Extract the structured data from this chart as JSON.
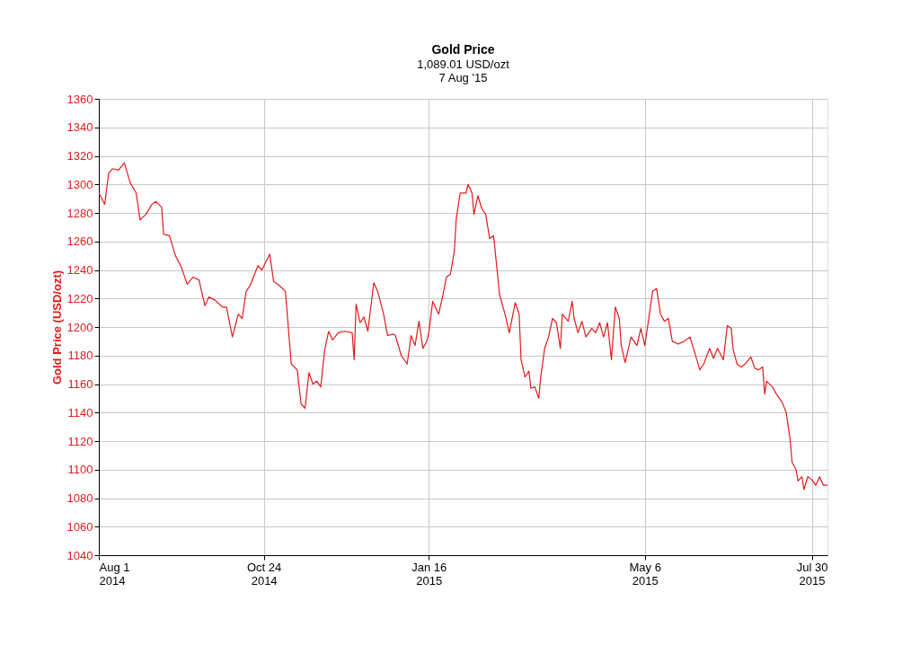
{
  "chart_data": {
    "type": "line",
    "title": "Gold Price",
    "subtitle": "1,089.01 USD/ozt\n7 Aug '15",
    "ylabel": "Gold Price (USD/ozt)",
    "x": [
      "2014-08-01",
      "2014-08-04",
      "2014-08-06",
      "2014-08-08",
      "2014-08-11",
      "2014-08-14",
      "2014-08-17",
      "2014-08-20",
      "2014-08-22",
      "2014-08-25",
      "2014-08-28",
      "2014-08-30",
      "2014-09-02",
      "2014-09-03",
      "2014-09-06",
      "2014-09-09",
      "2014-09-12",
      "2014-09-15",
      "2014-09-18",
      "2014-09-21",
      "2014-09-24",
      "2014-09-26",
      "2014-09-29",
      "2014-10-03",
      "2014-10-05",
      "2014-10-08",
      "2014-10-11",
      "2014-10-13",
      "2014-10-15",
      "2014-10-17",
      "2014-10-21",
      "2014-10-23",
      "2014-10-27",
      "2014-10-29",
      "2014-11-01",
      "2014-11-04",
      "2014-11-07",
      "2014-11-10",
      "2014-11-12",
      "2014-11-14",
      "2014-11-16",
      "2014-11-18",
      "2014-11-20",
      "2014-11-22",
      "2014-11-24",
      "2014-11-26",
      "2014-11-28",
      "2014-12-01",
      "2014-12-04",
      "2014-12-08",
      "2014-12-09",
      "2014-12-10",
      "2014-12-12",
      "2014-12-14",
      "2014-12-16",
      "2014-12-19",
      "2014-12-21",
      "2014-12-24",
      "2014-12-26",
      "2014-12-29",
      "2014-12-30",
      "2015-01-02",
      "2015-01-05",
      "2015-01-07",
      "2015-01-09",
      "2015-01-11",
      "2015-01-13",
      "2015-01-15",
      "2015-01-16",
      "2015-01-18",
      "2015-01-21",
      "2015-01-23",
      "2015-01-25",
      "2015-01-27",
      "2015-01-29",
      "2015-01-30",
      "2015-02-01",
      "2015-02-04",
      "2015-02-05",
      "2015-02-07",
      "2015-02-08",
      "2015-02-10",
      "2015-02-12",
      "2015-02-14",
      "2015-02-16",
      "2015-02-18",
      "2015-02-20",
      "2015-02-21",
      "2015-02-24",
      "2015-02-26",
      "2015-02-27",
      "2015-03-01",
      "2015-03-03",
      "2015-03-04",
      "2015-03-06",
      "2015-03-08",
      "2015-03-09",
      "2015-03-11",
      "2015-03-13",
      "2015-03-14",
      "2015-03-16",
      "2015-03-18",
      "2015-03-20",
      "2015-03-22",
      "2015-03-24",
      "2015-03-25",
      "2015-03-28",
      "2015-03-30",
      "2015-03-31",
      "2015-04-02",
      "2015-04-04",
      "2015-04-06",
      "2015-04-09",
      "2015-04-11",
      "2015-04-13",
      "2015-04-15",
      "2015-04-17",
      "2015-04-19",
      "2015-04-21",
      "2015-04-23",
      "2015-04-24",
      "2015-04-26",
      "2015-04-29",
      "2015-05-02",
      "2015-05-04",
      "2015-05-06",
      "2015-05-08",
      "2015-05-10",
      "2015-05-12",
      "2015-05-14",
      "2015-05-16",
      "2015-05-18",
      "2015-05-20",
      "2015-05-23",
      "2015-05-26",
      "2015-05-29",
      "2015-05-31",
      "2015-06-03",
      "2015-06-05",
      "2015-06-08",
      "2015-06-10",
      "2015-06-12",
      "2015-06-15",
      "2015-06-17",
      "2015-06-19",
      "2015-06-20",
      "2015-06-22",
      "2015-06-24",
      "2015-06-26",
      "2015-06-29",
      "2015-07-01",
      "2015-07-03",
      "2015-07-05",
      "2015-07-06",
      "2015-07-07",
      "2015-07-10",
      "2015-07-12",
      "2015-07-15",
      "2015-07-17",
      "2015-07-19",
      "2015-07-20",
      "2015-07-22",
      "2015-07-23",
      "2015-07-25",
      "2015-07-26",
      "2015-07-28",
      "2015-07-30",
      "2015-08-01",
      "2015-08-03",
      "2015-08-05",
      "2015-08-07"
    ],
    "series": [
      {
        "color": "#e31a1c",
        "values": [
          1294,
          1286,
          1308,
          1311,
          1310,
          1315,
          1301,
          1294,
          1275,
          1279,
          1286,
          1288,
          1284,
          1265,
          1264,
          1250,
          1242,
          1230,
          1235,
          1233,
          1215,
          1221,
          1219,
          1214,
          1214,
          1193,
          1209,
          1206,
          1225,
          1229,
          1243,
          1240,
          1251,
          1232,
          1229,
          1225,
          1174,
          1170,
          1146,
          1143,
          1168,
          1160,
          1162,
          1158,
          1184,
          1197,
          1191,
          1196,
          1197,
          1196,
          1177,
          1216,
          1203,
          1207,
          1197,
          1231,
          1225,
          1209,
          1194,
          1195,
          1194,
          1180,
          1174,
          1194,
          1187,
          1204,
          1185,
          1190,
          1196,
          1218,
          1209,
          1221,
          1235,
          1237,
          1253,
          1276,
          1294,
          1294,
          1300,
          1294,
          1279,
          1292,
          1283,
          1279,
          1262,
          1264,
          1237,
          1223,
          1208,
          1196,
          1203,
          1217,
          1209,
          1177,
          1165,
          1169,
          1157,
          1158,
          1150,
          1165,
          1185,
          1193,
          1206,
          1203,
          1185,
          1209,
          1204,
          1218,
          1206,
          1196,
          1204,
          1193,
          1199,
          1196,
          1203,
          1193,
          1203,
          1177,
          1214,
          1206,
          1187,
          1175,
          1193,
          1187,
          1199,
          1187,
          1206,
          1225,
          1227,
          1209,
          1204,
          1206,
          1190,
          1188,
          1190,
          1193,
          1184,
          1170,
          1174,
          1185,
          1178,
          1185,
          1177,
          1201,
          1199,
          1184,
          1174,
          1172,
          1174,
          1179,
          1171,
          1170,
          1172,
          1153,
          1162,
          1158,
          1153,
          1147,
          1140,
          1121,
          1105,
          1100,
          1092,
          1095,
          1086,
          1095,
          1093,
          1089,
          1095,
          1089,
          1089
        ]
      }
    ],
    "xlim": [
      "2014-08-01",
      "2015-08-07"
    ],
    "xticks": [
      {
        "value": "2014-08-01",
        "label": "Aug 1\n2014"
      },
      {
        "value": "2014-10-24",
        "label": "Oct 24\n2014"
      },
      {
        "value": "2015-01-16",
        "label": "Jan 16\n2015"
      },
      {
        "value": "2015-05-06",
        "label": "May 6\n2015"
      },
      {
        "value": "2015-07-30",
        "label": "Jul 30\n2015"
      }
    ],
    "ylim": [
      1040,
      1360
    ],
    "yticks": [
      1040,
      1060,
      1080,
      1100,
      1120,
      1140,
      1160,
      1180,
      1200,
      1220,
      1240,
      1260,
      1280,
      1300,
      1320,
      1340,
      1360
    ],
    "grid": true,
    "marker": "none",
    "line_style": "solid"
  }
}
